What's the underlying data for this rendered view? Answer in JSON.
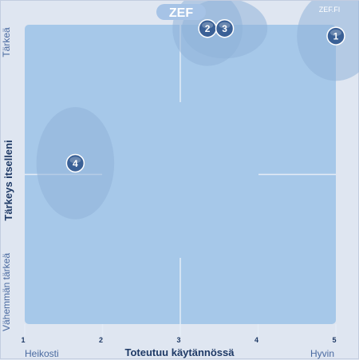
{
  "logo": {
    "text": "ZEF",
    "brand": "ZEF.FI"
  },
  "chart_data": {
    "type": "scatter",
    "xlabel": "Toteutuu käytännössä",
    "ylabel": "Tärkeys itselleni",
    "xlim": [
      1,
      5
    ],
    "ylim": [
      1,
      5
    ],
    "x_ticks": [
      "1",
      "2",
      "3",
      "4",
      "5"
    ],
    "x_low_label": "Heikosti",
    "x_high_label": "Hyvin",
    "y_high_label": "Tärkeä",
    "y_low_label": "Vähemmän tärkeä",
    "grid": true,
    "points": [
      {
        "label": "1",
        "x": 5.0,
        "y": 4.85,
        "spread_x": 0.5,
        "spread_y": 0.6
      },
      {
        "label": "2",
        "x": 3.35,
        "y": 4.95,
        "spread_x": 0.45,
        "spread_y": 0.5
      },
      {
        "label": "3",
        "x": 3.57,
        "y": 4.95,
        "spread_x": 0.55,
        "spread_y": 0.4
      },
      {
        "label": "4",
        "x": 1.65,
        "y": 3.15,
        "spread_x": 0.5,
        "spread_y": 0.75
      }
    ],
    "colors": {
      "plot_bg": "#a6c8e9",
      "spread": "#8fb2d8",
      "marker": "#3a6096",
      "gridline": "#e4ecf6"
    }
  }
}
